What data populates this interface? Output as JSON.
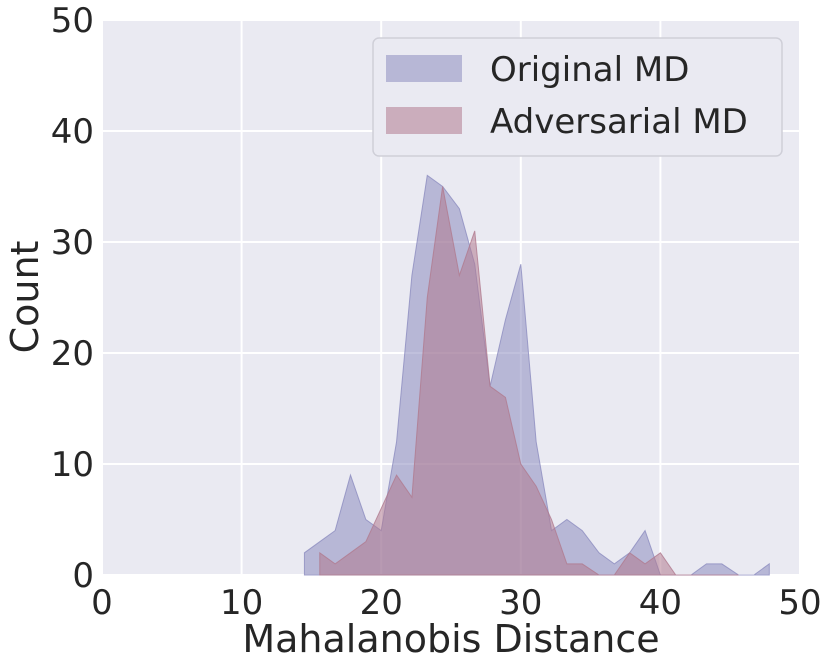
{
  "chart_data": {
    "type": "area",
    "title": "",
    "xlabel": "Mahalanobis Distance",
    "ylabel": "Count",
    "xlim": [
      0,
      50
    ],
    "ylim": [
      0,
      50
    ],
    "xticks": [
      "0",
      "10",
      "20",
      "30",
      "40",
      "50"
    ],
    "yticks": [
      "0",
      "10",
      "20",
      "30",
      "40",
      "50"
    ],
    "grid": true,
    "legend_position": "top-right",
    "series": [
      {
        "name": "Original MD",
        "color": "#8c8cbf",
        "x": [
          14.5,
          15.6,
          16.7,
          17.8,
          18.9,
          20.0,
          21.1,
          22.2,
          23.3,
          24.4,
          25.6,
          26.7,
          27.8,
          28.9,
          30.0,
          31.1,
          32.2,
          33.3,
          34.4,
          35.6,
          36.7,
          37.8,
          38.9,
          40.0,
          41.1,
          42.2,
          43.3,
          44.4,
          45.6,
          46.7,
          47.8
        ],
        "y": [
          2,
          3,
          4,
          9,
          5,
          4,
          12,
          27,
          36,
          35,
          33,
          28,
          17,
          23,
          28,
          12,
          4,
          5,
          4,
          2,
          1,
          2,
          4,
          0,
          0,
          0,
          1,
          1,
          0,
          0,
          1
        ]
      },
      {
        "name": "Adversarial MD",
        "color": "#b07a8f",
        "x": [
          15.6,
          16.7,
          17.8,
          18.9,
          20.0,
          21.1,
          22.2,
          23.3,
          24.4,
          25.6,
          26.7,
          27.8,
          28.9,
          30.0,
          31.1,
          32.2,
          33.3,
          34.4,
          35.6,
          36.7,
          37.8,
          38.9,
          40.0,
          41.1,
          42.2,
          43.3,
          44.4,
          45.6
        ],
        "y": [
          2,
          1,
          2,
          3,
          6,
          9,
          7,
          25,
          35,
          27,
          31,
          17,
          16,
          10,
          8,
          5,
          1,
          1,
          0,
          0,
          2,
          1,
          2,
          0,
          0,
          0,
          0,
          0
        ]
      }
    ]
  }
}
